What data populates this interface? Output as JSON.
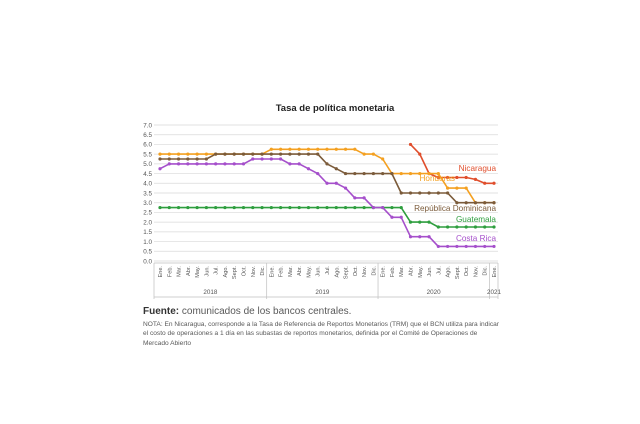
{
  "chart_data": {
    "type": "line",
    "title": "Tasa de política monetaria",
    "ylim": [
      0,
      7
    ],
    "yticks": [
      "0.0",
      "0.5",
      "1.0",
      "1.5",
      "2.0",
      "2.5",
      "3.0",
      "3.5",
      "4.0",
      "4.5",
      "5.0",
      "5.5",
      "6.0",
      "6.5",
      "7.0"
    ],
    "x": [
      "Ene.",
      "Feb.",
      "Mar.",
      "Abr.",
      "May.",
      "Jun.",
      "Jul.",
      "Ago.",
      "Sept.",
      "Oct.",
      "Nov.",
      "Dic.",
      "Ene.",
      "Feb.",
      "Mar.",
      "Abr.",
      "May.",
      "Jun.",
      "Jul.",
      "Ago.",
      "Sept.",
      "Oct.",
      "Nov.",
      "Dic.",
      "Ene.",
      "Feb.",
      "Mar.",
      "Abr.",
      "May.",
      "Jun.",
      "Jul.",
      "Ago.",
      "Sept.",
      "Oct.",
      "Nov.",
      "Dic.",
      "Ene."
    ],
    "years": [
      {
        "label": "2018",
        "start": 0,
        "end": 11
      },
      {
        "label": "2019",
        "start": 12,
        "end": 23
      },
      {
        "label": "2020",
        "start": 24,
        "end": 35
      },
      {
        "label": "2021",
        "start": 36,
        "end": 36
      }
    ],
    "grid": true,
    "legend": "inline labels at line ends",
    "series": [
      {
        "name": "Nicaragua",
        "color": "#E04E2C",
        "values": [
          null,
          null,
          null,
          null,
          null,
          null,
          null,
          null,
          null,
          null,
          null,
          null,
          null,
          null,
          null,
          null,
          null,
          null,
          null,
          null,
          null,
          null,
          null,
          null,
          null,
          null,
          null,
          6.0,
          5.5,
          4.5,
          4.3,
          4.3,
          4.3,
          4.3,
          4.2,
          4.0,
          4.0
        ]
      },
      {
        "name": "Honduras",
        "color": "#F4A020",
        "values": [
          5.5,
          5.5,
          5.5,
          5.5,
          5.5,
          5.5,
          5.5,
          5.5,
          5.5,
          5.5,
          5.5,
          5.5,
          5.75,
          5.75,
          5.75,
          5.75,
          5.75,
          5.75,
          5.75,
          5.75,
          5.75,
          5.75,
          5.5,
          5.5,
          5.25,
          4.5,
          4.5,
          4.5,
          4.5,
          4.5,
          4.5,
          3.75,
          3.75,
          3.75,
          3.0,
          3.0,
          3.0
        ]
      },
      {
        "name": "República Dominicana",
        "color": "#7B5B3A",
        "values": [
          5.25,
          5.25,
          5.25,
          5.25,
          5.25,
          5.25,
          5.5,
          5.5,
          5.5,
          5.5,
          5.5,
          5.5,
          5.5,
          5.5,
          5.5,
          5.5,
          5.5,
          5.5,
          5.0,
          4.75,
          4.5,
          4.5,
          4.5,
          4.5,
          4.5,
          4.5,
          3.5,
          3.5,
          3.5,
          3.5,
          3.5,
          3.5,
          3.0,
          3.0,
          3.0,
          3.0,
          3.0
        ]
      },
      {
        "name": "Guatemala",
        "color": "#2E9E3E",
        "values": [
          2.75,
          2.75,
          2.75,
          2.75,
          2.75,
          2.75,
          2.75,
          2.75,
          2.75,
          2.75,
          2.75,
          2.75,
          2.75,
          2.75,
          2.75,
          2.75,
          2.75,
          2.75,
          2.75,
          2.75,
          2.75,
          2.75,
          2.75,
          2.75,
          2.75,
          2.75,
          2.75,
          2.0,
          2.0,
          2.0,
          1.75,
          1.75,
          1.75,
          1.75,
          1.75,
          1.75,
          1.75
        ]
      },
      {
        "name": "Costa Rica",
        "color": "#A54FCB",
        "values": [
          4.75,
          5.0,
          5.0,
          5.0,
          5.0,
          5.0,
          5.0,
          5.0,
          5.0,
          5.0,
          5.25,
          5.25,
          5.25,
          5.25,
          5.0,
          5.0,
          4.75,
          4.5,
          4.0,
          4.0,
          3.75,
          3.25,
          3.25,
          2.75,
          2.75,
          2.25,
          2.25,
          1.25,
          1.25,
          1.25,
          0.75,
          0.75,
          0.75,
          0.75,
          0.75,
          0.75,
          0.75
        ]
      }
    ]
  },
  "footer": {
    "source_label": "Fuente:",
    "source_text": " comunicados de los bancos centrales.",
    "note": "NOTA: En Nicaragua, corresponde a la Tasa de Referencia de Reportos Monetarios (TRM) que el BCN utiliza para indicar el costo de operaciones a 1 día en las subastas de reportos monetarios, definida por el Comité de Operaciones de Mercado Abierto"
  }
}
